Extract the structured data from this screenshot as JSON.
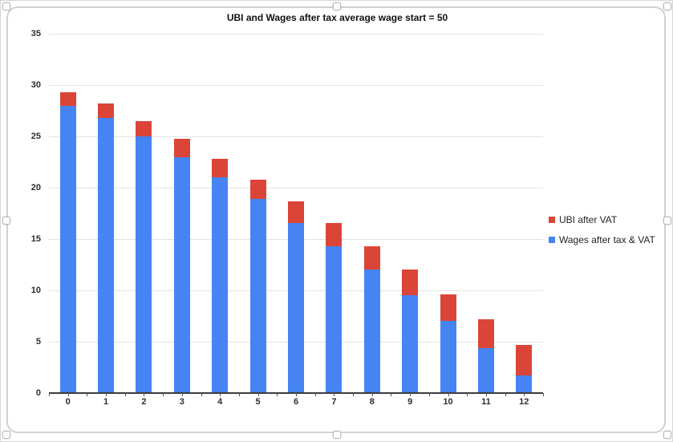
{
  "chart_data": {
    "type": "bar",
    "stacked": true,
    "title": "UBI and Wages after tax average wage start = 50",
    "xlabel": "",
    "ylabel": "",
    "categories": [
      "0",
      "1",
      "2",
      "3",
      "4",
      "5",
      "6",
      "7",
      "8",
      "9",
      "10",
      "11",
      "12"
    ],
    "series": [
      {
        "name": "Wages after tax & VAT",
        "color": "#4584F2",
        "values": [
          28.0,
          26.8,
          25.0,
          23.0,
          21.0,
          18.9,
          16.6,
          14.3,
          12.0,
          9.5,
          7.0,
          4.4,
          1.7
        ]
      },
      {
        "name": "UBI after VAT",
        "color": "#DB4538",
        "values": [
          1.3,
          1.4,
          1.5,
          1.8,
          1.8,
          1.9,
          2.1,
          2.3,
          2.3,
          2.5,
          2.6,
          2.8,
          3.0
        ]
      }
    ],
    "stack_totals": [
      29.3,
      28.2,
      26.5,
      24.8,
      22.8,
      20.8,
      18.7,
      16.6,
      14.3,
      12.0,
      9.6,
      7.2,
      4.7
    ],
    "ylim": [
      0,
      35
    ],
    "yticks": [
      0,
      5,
      10,
      15,
      20,
      25,
      30,
      35
    ],
    "grid": true,
    "legend_position": "right",
    "legend_order": [
      "UBI after VAT",
      "Wages after tax & VAT"
    ]
  },
  "colors": {
    "gridline": "#e3e3e3",
    "axis": "#3c3c3c",
    "label_text": "#2e2e2e",
    "background": "#ffffff",
    "selection_frame": "#d2d2d2"
  }
}
